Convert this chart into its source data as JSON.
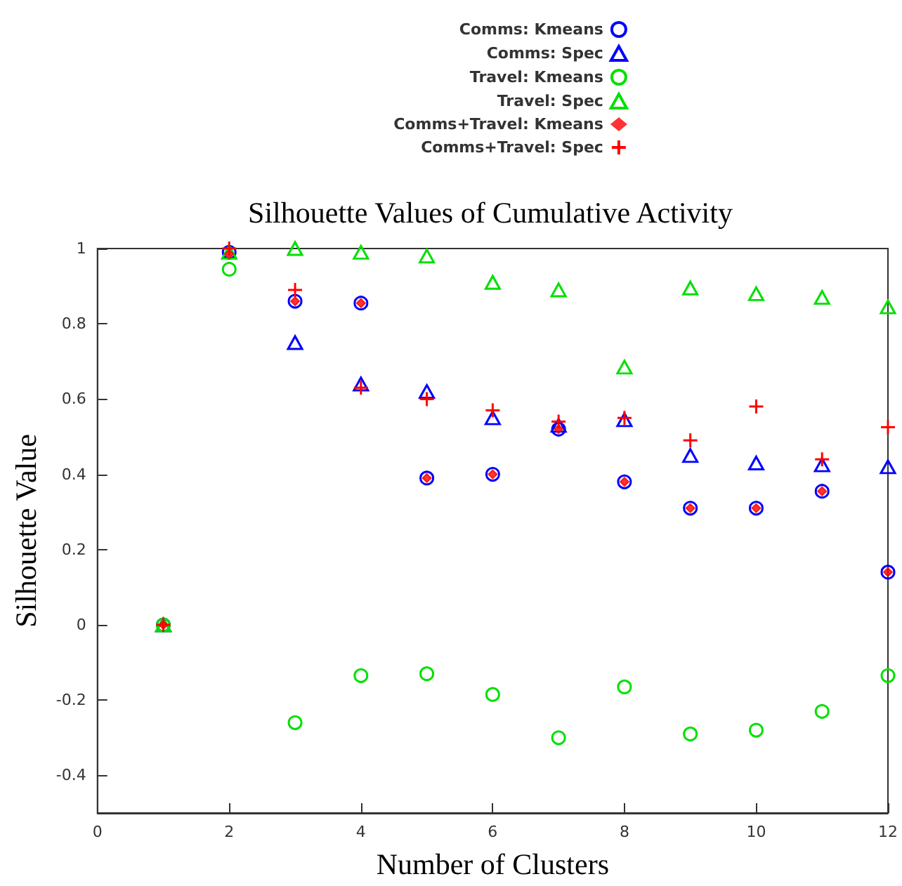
{
  "chart_data": {
    "type": "scatter",
    "title": "Silhouette Values of Cumulative Activity",
    "xlabel": "Number of Clusters",
    "ylabel": "Silhouette Value",
    "x": [
      1,
      2,
      3,
      4,
      5,
      6,
      7,
      8,
      9,
      10,
      11,
      12
    ],
    "series": [
      {
        "name": "Comms: Kmeans",
        "color": "#0000ff",
        "marker": "circle",
        "values": [
          0,
          0.99,
          0.86,
          0.855,
          0.39,
          0.4,
          0.52,
          0.38,
          0.31,
          0.31,
          0.355,
          0.14
        ]
      },
      {
        "name": "Comms: Spec",
        "color": "#0000ff",
        "marker": "triangle",
        "values": [
          0,
          null,
          0.75,
          0.64,
          0.62,
          0.55,
          0.53,
          0.545,
          0.45,
          0.43,
          0.425,
          0.42
        ]
      },
      {
        "name": "Travel: Kmeans",
        "color": "#00e000",
        "marker": "circle",
        "values": [
          0,
          0.945,
          -0.26,
          -0.135,
          -0.13,
          -0.185,
          -0.3,
          -0.165,
          -0.29,
          -0.28,
          -0.23,
          -0.135
        ]
      },
      {
        "name": "Travel: Spec",
        "color": "#00e000",
        "marker": "triangle",
        "values": [
          0,
          0.99,
          1.0,
          0.99,
          0.98,
          0.91,
          0.89,
          0.685,
          0.895,
          0.88,
          0.87,
          0.845
        ]
      },
      {
        "name": "Comms+Travel: Kmeans",
        "color": "#ff0000",
        "marker": "diamond",
        "values": [
          0,
          0.985,
          0.86,
          0.855,
          0.39,
          0.4,
          0.52,
          0.38,
          0.31,
          0.31,
          0.355,
          0.14
        ]
      },
      {
        "name": "Comms+Travel: Spec",
        "color": "#ff0000",
        "marker": "cross",
        "values": [
          0,
          1.0,
          0.89,
          0.63,
          0.6,
          0.57,
          0.54,
          0.55,
          0.49,
          0.58,
          0.44,
          0.525
        ]
      }
    ],
    "xlim": [
      0,
      12
    ],
    "xticks": [
      0,
      2,
      4,
      6,
      8,
      10,
      12
    ],
    "ylim": [
      -0.5,
      1
    ],
    "yticks": [
      -0.4,
      -0.2,
      0,
      0.2,
      0.4,
      0.6,
      0.8,
      1
    ],
    "grid": false,
    "legend": "top right"
  }
}
